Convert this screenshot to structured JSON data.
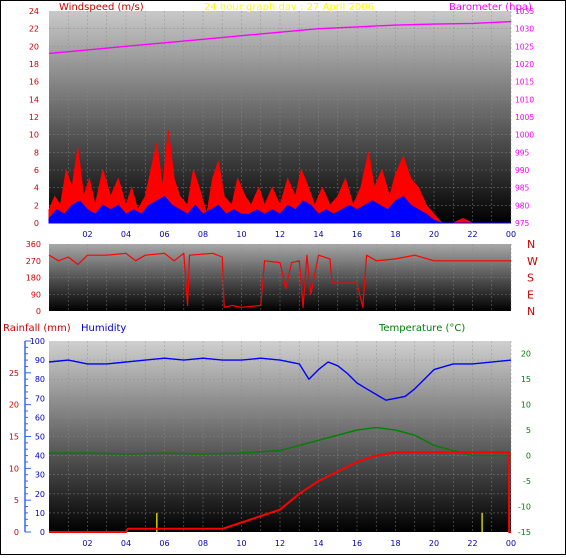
{
  "page": {
    "title": "24 hour graph day : 27 April 2006",
    "colors": {
      "windspeed": "#ff0000",
      "gust": "#ff0000",
      "avgwind": "#0000ff",
      "barometer": "#ff00ff",
      "direction": "#ff0000",
      "rainfall": "#ff0000",
      "humidity": "#0000ff",
      "temperature": "#008000",
      "axis_wind": "#cc0000",
      "axis_baro": "#ff00ff",
      "axis_rain": "#cc0000",
      "axis_hum": "#0000cc",
      "axis_temp": "#008000",
      "title": "#ffff00"
    }
  },
  "chart_data": [
    {
      "id": "wind-baro",
      "type": "line",
      "title": "24 hour graph day : 27 April 2006",
      "x_ticks": [
        "02",
        "04",
        "06",
        "08",
        "10",
        "12",
        "14",
        "16",
        "18",
        "20",
        "22",
        "00"
      ],
      "xlim": [
        0,
        24
      ],
      "left_axis": {
        "label": "Windspeed (m/s)",
        "ticks": [
          "0",
          "2",
          "4",
          "6",
          "8",
          "10",
          "12",
          "14",
          "16",
          "18",
          "20",
          "22",
          "24"
        ],
        "ylim": [
          0,
          24
        ]
      },
      "right_axis": {
        "label": "Barometer (hpa)",
        "ticks": [
          "975",
          "980",
          "985",
          "990",
          "995",
          "1000",
          "1005",
          "1010",
          "1015",
          "1020",
          "1025",
          "1030",
          "1035"
        ],
        "ylim": [
          975,
          1035
        ]
      },
      "series": [
        {
          "name": "Windspeed",
          "axis": "left",
          "points": [
            [
              0,
              1.5
            ],
            [
              0.3,
              3
            ],
            [
              0.6,
              2
            ],
            [
              0.9,
              6
            ],
            [
              1.2,
              4
            ],
            [
              1.5,
              8.5
            ],
            [
              1.8,
              3
            ],
            [
              2.1,
              5
            ],
            [
              2.4,
              2
            ],
            [
              2.8,
              6
            ],
            [
              3.2,
              3
            ],
            [
              3.6,
              5
            ],
            [
              4.0,
              2
            ],
            [
              4.3,
              4
            ],
            [
              4.6,
              1.5
            ],
            [
              5.0,
              3
            ],
            [
              5.3,
              6
            ],
            [
              5.6,
              9
            ],
            [
              5.9,
              4
            ],
            [
              6.2,
              10.5
            ],
            [
              6.5,
              5
            ],
            [
              6.8,
              3
            ],
            [
              7.2,
              2
            ],
            [
              7.5,
              6
            ],
            [
              7.8,
              4
            ],
            [
              8.2,
              1
            ],
            [
              8.5,
              5
            ],
            [
              8.8,
              7
            ],
            [
              9.1,
              3
            ],
            [
              9.5,
              2
            ],
            [
              9.8,
              5
            ],
            [
              10.2,
              3
            ],
            [
              10.5,
              2
            ],
            [
              10.9,
              4
            ],
            [
              11.2,
              2
            ],
            [
              11.6,
              4
            ],
            [
              12.0,
              2
            ],
            [
              12.4,
              5
            ],
            [
              12.8,
              3
            ],
            [
              13.1,
              6
            ],
            [
              13.4,
              4.5
            ],
            [
              13.8,
              2
            ],
            [
              14.2,
              4
            ],
            [
              14.6,
              2
            ],
            [
              15.0,
              3
            ],
            [
              15.4,
              5
            ],
            [
              15.8,
              2
            ],
            [
              16.2,
              4
            ],
            [
              16.6,
              8
            ],
            [
              16.9,
              4
            ],
            [
              17.3,
              6
            ],
            [
              17.7,
              3
            ],
            [
              18.0,
              5.5
            ],
            [
              18.4,
              7.5
            ],
            [
              18.8,
              5
            ],
            [
              19.2,
              4
            ],
            [
              19.6,
              2
            ],
            [
              20.0,
              1
            ],
            [
              20.4,
              0
            ],
            [
              21.0,
              0
            ],
            [
              21.5,
              0.5
            ],
            [
              22.0,
              0
            ],
            [
              24,
              0
            ]
          ]
        },
        {
          "name": "Average wind",
          "axis": "left",
          "points": [
            [
              0,
              0.5
            ],
            [
              0.4,
              1.5
            ],
            [
              0.8,
              1
            ],
            [
              1.2,
              2
            ],
            [
              1.6,
              2.5
            ],
            [
              2.0,
              1.5
            ],
            [
              2.4,
              1
            ],
            [
              2.8,
              2
            ],
            [
              3.2,
              1.5
            ],
            [
              3.6,
              2
            ],
            [
              4.0,
              1
            ],
            [
              4.4,
              1.5
            ],
            [
              4.8,
              1
            ],
            [
              5.2,
              2
            ],
            [
              5.6,
              2.5
            ],
            [
              6.0,
              3
            ],
            [
              6.4,
              2
            ],
            [
              6.8,
              1.5
            ],
            [
              7.2,
              1
            ],
            [
              7.6,
              2
            ],
            [
              8.0,
              1
            ],
            [
              8.4,
              1.5
            ],
            [
              8.8,
              2
            ],
            [
              9.2,
              1
            ],
            [
              9.6,
              1.5
            ],
            [
              10.0,
              1
            ],
            [
              10.4,
              1
            ],
            [
              10.8,
              1.5
            ],
            [
              11.2,
              1
            ],
            [
              11.6,
              1.5
            ],
            [
              12.0,
              1
            ],
            [
              12.4,
              2
            ],
            [
              12.8,
              1.5
            ],
            [
              13.2,
              2.5
            ],
            [
              13.6,
              2
            ],
            [
              14.0,
              1
            ],
            [
              14.4,
              1.5
            ],
            [
              14.8,
              1
            ],
            [
              15.2,
              1.5
            ],
            [
              15.6,
              2
            ],
            [
              16.0,
              1.5
            ],
            [
              16.4,
              2
            ],
            [
              16.8,
              2.5
            ],
            [
              17.2,
              2
            ],
            [
              17.6,
              1.5
            ],
            [
              18.0,
              2.5
            ],
            [
              18.4,
              3
            ],
            [
              18.8,
              2
            ],
            [
              19.2,
              1.5
            ],
            [
              19.6,
              1
            ],
            [
              20.0,
              0.3
            ],
            [
              20.4,
              0
            ],
            [
              24,
              0
            ]
          ]
        },
        {
          "name": "Barometer",
          "axis": "right",
          "points": [
            [
              0,
              1023
            ],
            [
              2,
              1024
            ],
            [
              4,
              1025
            ],
            [
              6,
              1026
            ],
            [
              8,
              1027
            ],
            [
              10,
              1028
            ],
            [
              12,
              1029
            ],
            [
              14,
              1030
            ],
            [
              16,
              1030.5
            ],
            [
              18,
              1031
            ],
            [
              20,
              1031.3
            ],
            [
              22,
              1031.5
            ],
            [
              24,
              1032
            ]
          ]
        }
      ]
    },
    {
      "id": "direction",
      "type": "line",
      "left_axis": {
        "ticks": [
          "0",
          "90",
          "180",
          "270",
          "360"
        ],
        "ylim": [
          0,
          360
        ]
      },
      "right_labels": [
        "N",
        "W",
        "S",
        "E",
        "N"
      ],
      "series": [
        {
          "name": "Wind direction",
          "points": [
            [
              0,
              300
            ],
            [
              0.5,
              270
            ],
            [
              1,
              290
            ],
            [
              1.5,
              250
            ],
            [
              2,
              300
            ],
            [
              3,
              300
            ],
            [
              4,
              310
            ],
            [
              4.5,
              270
            ],
            [
              5,
              300
            ],
            [
              6,
              310
            ],
            [
              6.5,
              270
            ],
            [
              7,
              310
            ],
            [
              7.2,
              30
            ],
            [
              7.3,
              300
            ],
            [
              8.5,
              310
            ],
            [
              9,
              290
            ],
            [
              9.1,
              20
            ],
            [
              9.5,
              30
            ],
            [
              10,
              20
            ],
            [
              11,
              30
            ],
            [
              11.2,
              270
            ],
            [
              12,
              260
            ],
            [
              12.3,
              120
            ],
            [
              12.6,
              260
            ],
            [
              13,
              270
            ],
            [
              13.2,
              20
            ],
            [
              13.4,
              300
            ],
            [
              13.6,
              90
            ],
            [
              14,
              300
            ],
            [
              14.6,
              280
            ],
            [
              14.7,
              150
            ],
            [
              16,
              150
            ],
            [
              16.3,
              20
            ],
            [
              16.5,
              300
            ],
            [
              17,
              270
            ],
            [
              18,
              280
            ],
            [
              19,
              300
            ],
            [
              20,
              270
            ],
            [
              24,
              270
            ]
          ]
        }
      ]
    },
    {
      "id": "rain-hum-temp",
      "type": "line",
      "x_ticks": [
        "02",
        "04",
        "06",
        "08",
        "10",
        "12",
        "14",
        "16",
        "18",
        "20",
        "22",
        "00"
      ],
      "xlim": [
        0,
        24
      ],
      "rain_axis": {
        "label": "Rainfall (mm)",
        "ticks": [
          "0",
          "5",
          "10",
          "15",
          "20",
          "25"
        ],
        "ylim": [
          0,
          30
        ]
      },
      "humidity_axis": {
        "label": "Humidity",
        "ticks": [
          "0",
          "10",
          "20",
          "30",
          "40",
          "50",
          "60",
          "70",
          "80",
          "90",
          "100"
        ],
        "ylim": [
          0,
          100
        ]
      },
      "temp_axis": {
        "label": "Temperature (°C)",
        "ticks": [
          "-15",
          "-10",
          "-5",
          "0",
          "5",
          "10",
          "15",
          "20"
        ],
        "ylim": [
          -15,
          22.5
        ]
      },
      "series": [
        {
          "name": "Humidity",
          "axis": "humidity",
          "points": [
            [
              0,
              89
            ],
            [
              1,
              90
            ],
            [
              2,
              88
            ],
            [
              3,
              88
            ],
            [
              4,
              89
            ],
            [
              5,
              90
            ],
            [
              6,
              91
            ],
            [
              7,
              90
            ],
            [
              8,
              91
            ],
            [
              9,
              90
            ],
            [
              10,
              90
            ],
            [
              11,
              91
            ],
            [
              12,
              90
            ],
            [
              13,
              88
            ],
            [
              13.5,
              80
            ],
            [
              14,
              85
            ],
            [
              14.5,
              89
            ],
            [
              15,
              87
            ],
            [
              15.5,
              83
            ],
            [
              16,
              78
            ],
            [
              16.5,
              75
            ],
            [
              17,
              72
            ],
            [
              17.5,
              69
            ],
            [
              18,
              70
            ],
            [
              18.5,
              71
            ],
            [
              19,
              75
            ],
            [
              19.5,
              80
            ],
            [
              20,
              85
            ],
            [
              21,
              88
            ],
            [
              22,
              88
            ],
            [
              24,
              90
            ]
          ]
        },
        {
          "name": "Temperature",
          "axis": "temp",
          "points": [
            [
              0,
              0.5
            ],
            [
              2,
              0.5
            ],
            [
              4,
              0.3
            ],
            [
              6,
              0.5
            ],
            [
              8,
              0.3
            ],
            [
              10,
              0.5
            ],
            [
              12,
              1
            ],
            [
              13,
              2
            ],
            [
              14,
              3
            ],
            [
              15,
              4
            ],
            [
              16,
              5
            ],
            [
              17,
              5.5
            ],
            [
              18,
              5
            ],
            [
              19,
              4
            ],
            [
              20,
              2
            ],
            [
              21,
              1
            ],
            [
              22,
              0
            ],
            [
              24,
              0
            ]
          ]
        },
        {
          "name": "Rainfall",
          "axis": "rain",
          "points": [
            [
              0,
              0
            ],
            [
              4,
              0
            ],
            [
              4.1,
              0.5
            ],
            [
              9,
              0.5
            ],
            [
              10,
              1.5
            ],
            [
              11,
              2.5
            ],
            [
              12,
              3.5
            ],
            [
              13,
              6
            ],
            [
              14,
              8
            ],
            [
              15,
              9.5
            ],
            [
              16,
              11
            ],
            [
              17,
              12
            ],
            [
              18,
              12.5
            ],
            [
              20,
              12.5
            ],
            [
              22,
              12.5
            ],
            [
              23.9,
              12.5
            ],
            [
              23.9,
              0
            ],
            [
              24,
              0
            ]
          ]
        }
      ],
      "rain_rate_bars": [
        [
          5.6,
          3
        ],
        [
          22.5,
          3
        ]
      ]
    }
  ]
}
